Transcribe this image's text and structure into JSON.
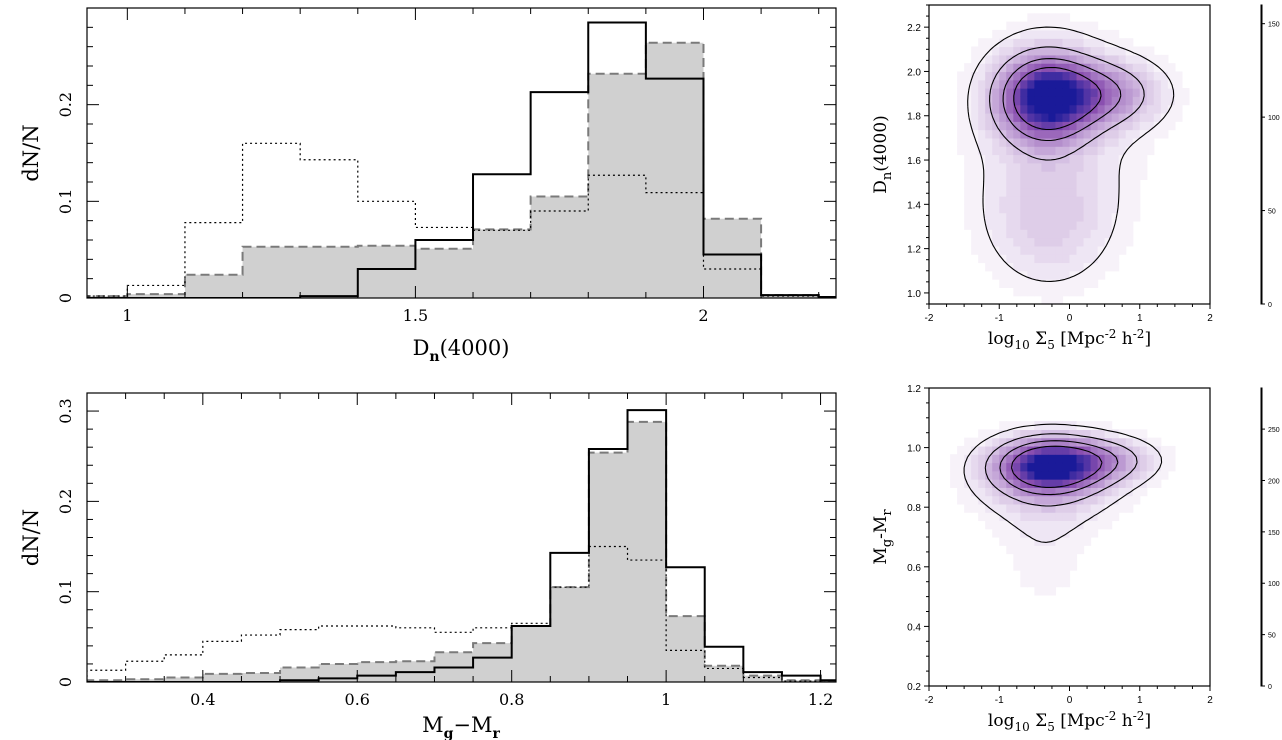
{
  "chart_data": [
    {
      "type": "histogram",
      "xlabel_main": "D",
      "xlabel_sub": "n",
      "xlabel_tail": "(4000)",
      "ylabel": "dN/N",
      "xlim": [
        0.93,
        2.23
      ],
      "ylim": [
        0,
        0.3
      ],
      "xticks": [
        "1",
        "1.5",
        "2"
      ],
      "xtick_values": [
        1,
        1.5,
        2
      ],
      "yticks": [
        "0",
        "0.1",
        "0.2"
      ],
      "ytick_values": [
        0,
        0.1,
        0.2
      ],
      "bin_edges": [
        0.9,
        1.0,
        1.1,
        1.2,
        1.3,
        1.4,
        1.5,
        1.6,
        1.7,
        1.8,
        1.9,
        2.0,
        2.1,
        2.2,
        2.3
      ],
      "series": [
        {
          "style": "filled-dashed",
          "values": [
            0.002,
            0.004,
            0.024,
            0.053,
            0.053,
            0.054,
            0.051,
            0.071,
            0.105,
            0.232,
            0.264,
            0.082,
            0.003,
            0.001
          ]
        },
        {
          "style": "solid",
          "values": [
            0,
            0,
            0,
            0,
            0.002,
            0.03,
            0.06,
            0.128,
            0.213,
            0.285,
            0.227,
            0.045,
            0.003,
            0.001
          ]
        },
        {
          "style": "dotted",
          "values": [
            0.002,
            0.013,
            0.078,
            0.16,
            0.143,
            0.1,
            0.073,
            0.07,
            0.09,
            0.127,
            0.109,
            0.03,
            0.002,
            0
          ]
        }
      ]
    },
    {
      "type": "histogram",
      "xlabel_main": "M",
      "xlabel_sub": "g",
      "xlabel_mid": "−M",
      "xlabel_sub2": "r",
      "ylabel": "dN/N",
      "xlim": [
        0.25,
        1.22
      ],
      "ylim": [
        0,
        0.32
      ],
      "xticks": [
        "0.4",
        "0.6",
        "0.8",
        "1",
        "1.2"
      ],
      "xtick_values": [
        0.4,
        0.6,
        0.8,
        1.0,
        1.2
      ],
      "yticks": [
        "0",
        "0.1",
        "0.2",
        "0.3"
      ],
      "ytick_values": [
        0,
        0.1,
        0.2,
        0.3
      ],
      "bin_edges": [
        0.25,
        0.3,
        0.35,
        0.4,
        0.45,
        0.5,
        0.55,
        0.6,
        0.65,
        0.7,
        0.75,
        0.8,
        0.85,
        0.9,
        0.95,
        1.0,
        1.05,
        1.1,
        1.15,
        1.2,
        1.25
      ],
      "series": [
        {
          "style": "filled-dashed",
          "values": [
            0.002,
            0.003,
            0.005,
            0.009,
            0.01,
            0.016,
            0.02,
            0.022,
            0.023,
            0.033,
            0.043,
            0.062,
            0.105,
            0.254,
            0.288,
            0.073,
            0.018,
            0.007,
            0.002,
            0.001
          ]
        },
        {
          "style": "solid",
          "values": [
            0,
            0,
            0,
            0,
            0,
            0.002,
            0.004,
            0.007,
            0.011,
            0.016,
            0.027,
            0.062,
            0.143,
            0.258,
            0.301,
            0.127,
            0.039,
            0.011,
            0.007,
            0.002
          ]
        },
        {
          "style": "dotted",
          "values": [
            0.013,
            0.023,
            0.03,
            0.045,
            0.052,
            0.058,
            0.062,
            0.062,
            0.06,
            0.055,
            0.06,
            0.065,
            0.105,
            0.15,
            0.135,
            0.035,
            0.015,
            0.005,
            0.001,
            0
          ]
        }
      ]
    },
    {
      "type": "heatmap",
      "xlabel": "log",
      "xlabel_sub": "10",
      "xlabel_rest": " Σ",
      "xlabel_sigsub": "5",
      "xlabel_unit": " [Mpc",
      "xlabel_sup1": "-2",
      "xlabel_h": " h",
      "xlabel_sup2": "-2",
      "xlabel_end": "]",
      "ylabel_main": "D",
      "ylabel_sub": "n",
      "ylabel_tail": "(4000)",
      "xlim": [
        -2,
        2
      ],
      "ylim": [
        0.95,
        2.3
      ],
      "xticks": [
        "-2",
        "-1",
        "0",
        "1",
        "2"
      ],
      "xtick_values": [
        -2,
        -1,
        0,
        1,
        2
      ],
      "yticks": [
        "1.0",
        "1.2",
        "1.4",
        "1.6",
        "1.8",
        "2.0",
        "2.2"
      ],
      "ytick_values": [
        1.0,
        1.2,
        1.4,
        1.6,
        1.8,
        2.0,
        2.2
      ],
      "colorbar_ticks": [
        "0",
        "50",
        "100",
        "150"
      ],
      "colorbar_tick_values": [
        0,
        50,
        100,
        150
      ],
      "colorbar_max": 160,
      "colors": {
        "low": "#ffffff",
        "mid": "#8a4fb0",
        "high": "#1a1a99"
      },
      "density_blobs": [
        {
          "x": -0.35,
          "y": 1.88,
          "sx": 0.45,
          "sy": 0.13,
          "w": 155
        },
        {
          "x": 0.45,
          "y": 1.9,
          "sx": 0.55,
          "sy": 0.1,
          "w": 70
        },
        {
          "x": -0.3,
          "y": 1.32,
          "sx": 0.6,
          "sy": 0.2,
          "w": 28
        },
        {
          "x": -0.2,
          "y": 1.7,
          "sx": 0.9,
          "sy": 0.35,
          "w": 20
        }
      ],
      "contour_levels": [
        15,
        45,
        80,
        115
      ]
    },
    {
      "type": "heatmap",
      "xlabel": "log",
      "xlabel_sub": "10",
      "xlabel_rest": " Σ",
      "xlabel_sigsub": "5",
      "xlabel_unit": " [Mpc",
      "xlabel_sup1": "-2",
      "xlabel_h": " h",
      "xlabel_sup2": "-2",
      "xlabel_end": "]",
      "ylabel_main": "M",
      "ylabel_sub": "g",
      "ylabel_mid": "-M",
      "ylabel_sub2": "r",
      "xlim": [
        -2,
        2
      ],
      "ylim": [
        0.2,
        1.2
      ],
      "xticks": [
        "-2",
        "-1",
        "0",
        "1",
        "2"
      ],
      "xtick_values": [
        -2,
        -1,
        0,
        1,
        2
      ],
      "yticks": [
        "0.2",
        "0.4",
        "0.6",
        "0.8",
        "1.0",
        "1.2"
      ],
      "ytick_values": [
        0.2,
        0.4,
        0.6,
        0.8,
        1.0,
        1.2
      ],
      "colorbar_ticks": [
        "0",
        "50",
        "100",
        "150",
        "200",
        "250"
      ],
      "colorbar_tick_values": [
        0,
        50,
        100,
        150,
        200,
        250
      ],
      "colorbar_max": 290,
      "colors": {
        "low": "#ffffff",
        "mid": "#8a4fb0",
        "high": "#1a1a99"
      },
      "density_blobs": [
        {
          "x": -0.3,
          "y": 0.94,
          "sx": 0.5,
          "sy": 0.06,
          "w": 270
        },
        {
          "x": 0.5,
          "y": 0.96,
          "sx": 0.5,
          "sy": 0.05,
          "w": 90
        },
        {
          "x": -0.3,
          "y": 0.88,
          "sx": 0.75,
          "sy": 0.1,
          "w": 60
        },
        {
          "x": -0.35,
          "y": 0.65,
          "sx": 0.45,
          "sy": 0.16,
          "w": 22
        }
      ],
      "contour_levels": [
        30,
        80,
        140,
        200
      ]
    }
  ]
}
